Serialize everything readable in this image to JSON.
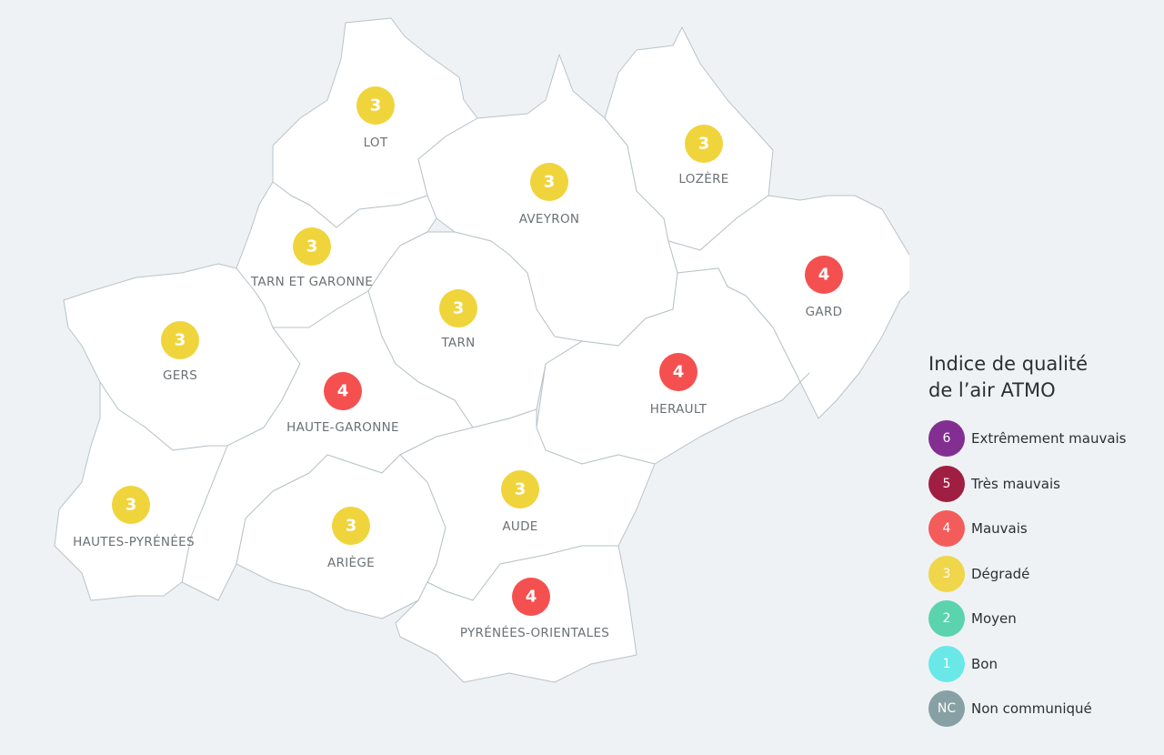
{
  "legend": {
    "title": "Indice de qualité de l’air ATMO",
    "items": [
      {
        "code": "6",
        "label": "Extrêmement mauvais",
        "color": "#7b1f8a"
      },
      {
        "code": "5",
        "label": "Très mauvais",
        "color": "#9b0d35"
      },
      {
        "code": "4",
        "label": "Mauvais",
        "color": "#f55050"
      },
      {
        "code": "3",
        "label": "Dégradé",
        "color": "#f0d43c"
      },
      {
        "code": "2",
        "label": "Moyen",
        "color": "#4fd1a8"
      },
      {
        "code": "1",
        "label": "Bon",
        "color": "#5ee8e6"
      },
      {
        "code": "NC",
        "label": "Non communiqué",
        "color": "#7f9a9e"
      }
    ]
  },
  "departments": [
    {
      "name": "LOT",
      "value": 3
    },
    {
      "name": "AVEYRON",
      "value": 3
    },
    {
      "name": "LOZÈRE",
      "value": 3
    },
    {
      "name": "TARN ET GARONNE",
      "value": 3
    },
    {
      "name": "GARD",
      "value": 4
    },
    {
      "name": "TARN",
      "value": 3
    },
    {
      "name": "GERS",
      "value": 3
    },
    {
      "name": "HERAULT",
      "value": 4
    },
    {
      "name": "HAUTE-GARONNE",
      "value": 4
    },
    {
      "name": "AUDE",
      "value": 3
    },
    {
      "name": "HAUTES-PYRÉNÉES",
      "value": 3
    },
    {
      "name": "ARIÈGE",
      "value": 3
    },
    {
      "name": "PYRÉNÉES-ORIENTALES",
      "value": 4
    }
  ]
}
